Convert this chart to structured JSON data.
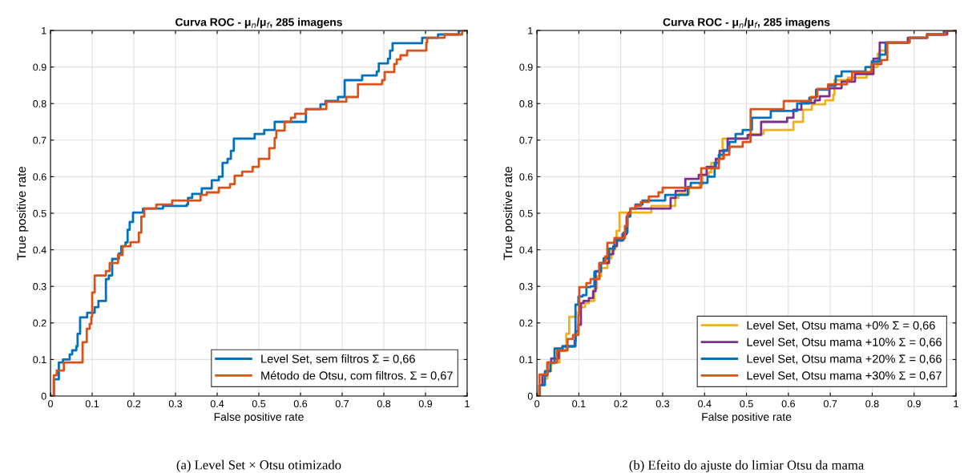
{
  "chart_data": [
    {
      "type": "step",
      "title": "Curva ROC - μ$_{n}$/μ$_{f}$, 285 imagens",
      "xlabel": "False positive rate",
      "ylabel": "True positive rate",
      "xlim": [
        0,
        1
      ],
      "ylim": [
        0,
        1
      ],
      "xticks": [
        0,
        0.1,
        0.2,
        0.3,
        0.4,
        0.5,
        0.6,
        0.7,
        0.8,
        0.9,
        1
      ],
      "yticks": [
        0,
        0.1,
        0.2,
        0.3,
        0.4,
        0.5,
        0.6,
        0.7,
        0.8,
        0.9,
        1
      ],
      "grid": true,
      "legend": "bottom right",
      "annotations": [
        "(a) Level Set × Otsu otimizado"
      ],
      "series": [
        {
          "name": "Level Set, sem filtros Σ = 0,66",
          "color": "#0072bd",
          "x": [
            0,
            0.008,
            0.02,
            0.03,
            0.046,
            0.052,
            0.062,
            0.065,
            0.071,
            0.088,
            0.106,
            0.115,
            0.133,
            0.14,
            0.148,
            0.164,
            0.17,
            0.18,
            0.185,
            0.19,
            0.198,
            0.222,
            0.27,
            0.327,
            0.33,
            0.34,
            0.363,
            0.387,
            0.404,
            0.413,
            0.425,
            0.433,
            0.44,
            0.49,
            0.513,
            0.538,
            0.613,
            0.648,
            0.66,
            0.69,
            0.706,
            0.748,
            0.783,
            0.788,
            0.81,
            0.815,
            0.821,
            0.892,
            0.93,
            0.98,
            1
          ],
          "values": [
            0,
            0.046,
            0.092,
            0.1,
            0.114,
            0.125,
            0.136,
            0.17,
            0.215,
            0.228,
            0.243,
            0.26,
            0.32,
            0.33,
            0.375,
            0.39,
            0.41,
            0.42,
            0.455,
            0.476,
            0.502,
            0.513,
            0.52,
            0.524,
            0.542,
            0.553,
            0.568,
            0.59,
            0.6,
            0.638,
            0.649,
            0.671,
            0.704,
            0.717,
            0.728,
            0.75,
            0.785,
            0.798,
            0.807,
            0.818,
            0.864,
            0.877,
            0.888,
            0.91,
            0.923,
            0.945,
            0.965,
            0.98,
            0.989,
            1.0,
            1.0
          ]
        },
        {
          "name": "Método de Otsu, com filtros. Σ = 0,67",
          "color": "#d95319",
          "x": [
            0,
            0.008,
            0.015,
            0.032,
            0.077,
            0.087,
            0.094,
            0.098,
            0.1,
            0.106,
            0.133,
            0.142,
            0.162,
            0.173,
            0.192,
            0.212,
            0.218,
            0.225,
            0.254,
            0.292,
            0.36,
            0.375,
            0.404,
            0.431,
            0.442,
            0.46,
            0.485,
            0.5,
            0.525,
            0.538,
            0.542,
            0.562,
            0.577,
            0.587,
            0.613,
            0.662,
            0.71,
            0.738,
            0.796,
            0.802,
            0.825,
            0.831,
            0.84,
            0.856,
            0.902,
            0.904,
            0.946,
            0.988,
            1
          ],
          "values": [
            0,
            0.057,
            0.07,
            0.092,
            0.147,
            0.184,
            0.197,
            0.217,
            0.283,
            0.33,
            0.342,
            0.364,
            0.386,
            0.41,
            0.421,
            0.447,
            0.491,
            0.513,
            0.524,
            0.535,
            0.55,
            0.557,
            0.57,
            0.58,
            0.603,
            0.614,
            0.627,
            0.649,
            0.678,
            0.706,
            0.726,
            0.75,
            0.761,
            0.772,
            0.785,
            0.805,
            0.818,
            0.853,
            0.864,
            0.886,
            0.908,
            0.921,
            0.932,
            0.945,
            0.967,
            0.98,
            0.989,
            1.0,
            1.0
          ]
        }
      ]
    },
    {
      "type": "step",
      "title": "Curva ROC - μ$_{n}$/μ$_{f}$, 285 imagens",
      "xlabel": "False positive rate",
      "ylabel": "True positive rate",
      "xlim": [
        0,
        1
      ],
      "ylim": [
        0,
        1
      ],
      "xticks": [
        0,
        0.1,
        0.2,
        0.3,
        0.4,
        0.5,
        0.6,
        0.7,
        0.8,
        0.9,
        1
      ],
      "yticks": [
        0,
        0.1,
        0.2,
        0.3,
        0.4,
        0.5,
        0.6,
        0.7,
        0.8,
        0.9,
        1
      ],
      "grid": true,
      "legend": "bottom right",
      "annotations": [
        "(b) Efeito do ajuste do limiar Otsu da mama"
      ],
      "series": [
        {
          "name": "Level Set, Otsu mama +0% Σ = 0,66",
          "color": "#edb120",
          "x": [
            0,
            0.006,
            0.015,
            0.025,
            0.034,
            0.054,
            0.07,
            0.077,
            0.092,
            0.1,
            0.115,
            0.124,
            0.137,
            0.143,
            0.153,
            0.168,
            0.178,
            0.187,
            0.19,
            0.197,
            0.273,
            0.33,
            0.338,
            0.363,
            0.388,
            0.395,
            0.41,
            0.416,
            0.427,
            0.443,
            0.507,
            0.541,
            0.612,
            0.635,
            0.656,
            0.688,
            0.707,
            0.71,
            0.742,
            0.787,
            0.797,
            0.813,
            0.818,
            0.832,
            0.889,
            0.931
          ],
          "values": [
            0,
            0.03,
            0.048,
            0.068,
            0.092,
            0.123,
            0.17,
            0.217,
            0.228,
            0.243,
            0.254,
            0.26,
            0.294,
            0.327,
            0.35,
            0.377,
            0.4,
            0.425,
            0.452,
            0.502,
            0.52,
            0.542,
            0.553,
            0.57,
            0.579,
            0.605,
            0.612,
            0.638,
            0.649,
            0.704,
            0.717,
            0.728,
            0.75,
            0.783,
            0.798,
            0.809,
            0.824,
            0.864,
            0.871,
            0.881,
            0.9,
            0.936,
            0.945,
            0.967,
            0.98,
            0.98
          ]
        },
        {
          "name": "Level Set, Otsu mama +10% Σ = 0,66",
          "color": "#7e2f8e",
          "x": [
            0,
            0.006,
            0.013,
            0.025,
            0.034,
            0.052,
            0.061,
            0.09,
            0.092,
            0.099,
            0.105,
            0.111,
            0.124,
            0.134,
            0.14,
            0.149,
            0.172,
            0.182,
            0.191,
            0.204,
            0.214,
            0.22,
            0.223,
            0.319,
            0.331,
            0.354,
            0.386,
            0.405,
            0.427,
            0.436,
            0.455,
            0.503,
            0.535,
            0.597,
            0.612,
            0.631,
            0.663,
            0.675,
            0.698,
            0.727,
            0.759,
            0.803,
            0.818,
            0.885,
            0.931,
            0.979,
            1
          ],
          "values": [
            0,
            0.03,
            0.057,
            0.092,
            0.103,
            0.125,
            0.136,
            0.151,
            0.177,
            0.195,
            0.254,
            0.26,
            0.268,
            0.287,
            0.342,
            0.364,
            0.388,
            0.41,
            0.425,
            0.443,
            0.491,
            0.502,
            0.513,
            0.542,
            0.561,
            0.594,
            0.605,
            0.627,
            0.649,
            0.671,
            0.704,
            0.714,
            0.75,
            0.761,
            0.783,
            0.802,
            0.809,
            0.82,
            0.842,
            0.86,
            0.881,
            0.923,
            0.967,
            0.98,
            0.989,
            1.0,
            1.0
          ]
        },
        {
          "name": "Level Set, Otsu mama +20% Σ = 0,66",
          "color": "#0072bd",
          "x": [
            0,
            0.006,
            0.019,
            0.032,
            0.042,
            0.061,
            0.092,
            0.099,
            0.109,
            0.118,
            0.128,
            0.137,
            0.153,
            0.159,
            0.172,
            0.185,
            0.207,
            0.216,
            0.223,
            0.235,
            0.252,
            0.306,
            0.36,
            0.367,
            0.407,
            0.424,
            0.434,
            0.446,
            0.459,
            0.474,
            0.491,
            0.513,
            0.558,
            0.621,
            0.65,
            0.666,
            0.695,
            0.713,
            0.727,
            0.784,
            0.799,
            0.818,
            0.832,
            0.889,
            0.931,
            0.971,
            1
          ],
          "values": [
            0,
            0.03,
            0.068,
            0.09,
            0.13,
            0.136,
            0.25,
            0.272,
            0.276,
            0.298,
            0.3,
            0.34,
            0.364,
            0.377,
            0.403,
            0.427,
            0.447,
            0.491,
            0.513,
            0.524,
            0.535,
            0.55,
            0.572,
            0.583,
            0.6,
            0.638,
            0.66,
            0.673,
            0.695,
            0.717,
            0.728,
            0.761,
            0.78,
            0.8,
            0.816,
            0.838,
            0.849,
            0.875,
            0.888,
            0.9,
            0.915,
            0.934,
            0.967,
            0.98,
            0.989,
            1.0,
            1.0
          ]
        },
        {
          "name": "Level Set, Otsu mama +30% Σ = 0,67",
          "color": "#d95319",
          "x": [
            0,
            0.006,
            0.025,
            0.048,
            0.073,
            0.086,
            0.099,
            0.101,
            0.118,
            0.128,
            0.149,
            0.163,
            0.168,
            0.185,
            0.21,
            0.216,
            0.223,
            0.235,
            0.248,
            0.267,
            0.29,
            0.3,
            0.392,
            0.434,
            0.446,
            0.459,
            0.491,
            0.51,
            0.589,
            0.654,
            0.669,
            0.695,
            0.74,
            0.752,
            0.799,
            0.822,
            0.836,
            0.889,
            0.931,
            0.975,
            1
          ],
          "values": [
            0,
            0.059,
            0.092,
            0.125,
            0.156,
            0.167,
            0.221,
            0.298,
            0.309,
            0.32,
            0.364,
            0.382,
            0.419,
            0.432,
            0.465,
            0.498,
            0.513,
            0.52,
            0.531,
            0.546,
            0.557,
            0.57,
            0.623,
            0.649,
            0.66,
            0.682,
            0.695,
            0.785,
            0.807,
            0.818,
            0.84,
            0.853,
            0.864,
            0.886,
            0.908,
            0.919,
            0.967,
            0.98,
            0.989,
            1.0,
            1.0
          ]
        }
      ]
    }
  ]
}
